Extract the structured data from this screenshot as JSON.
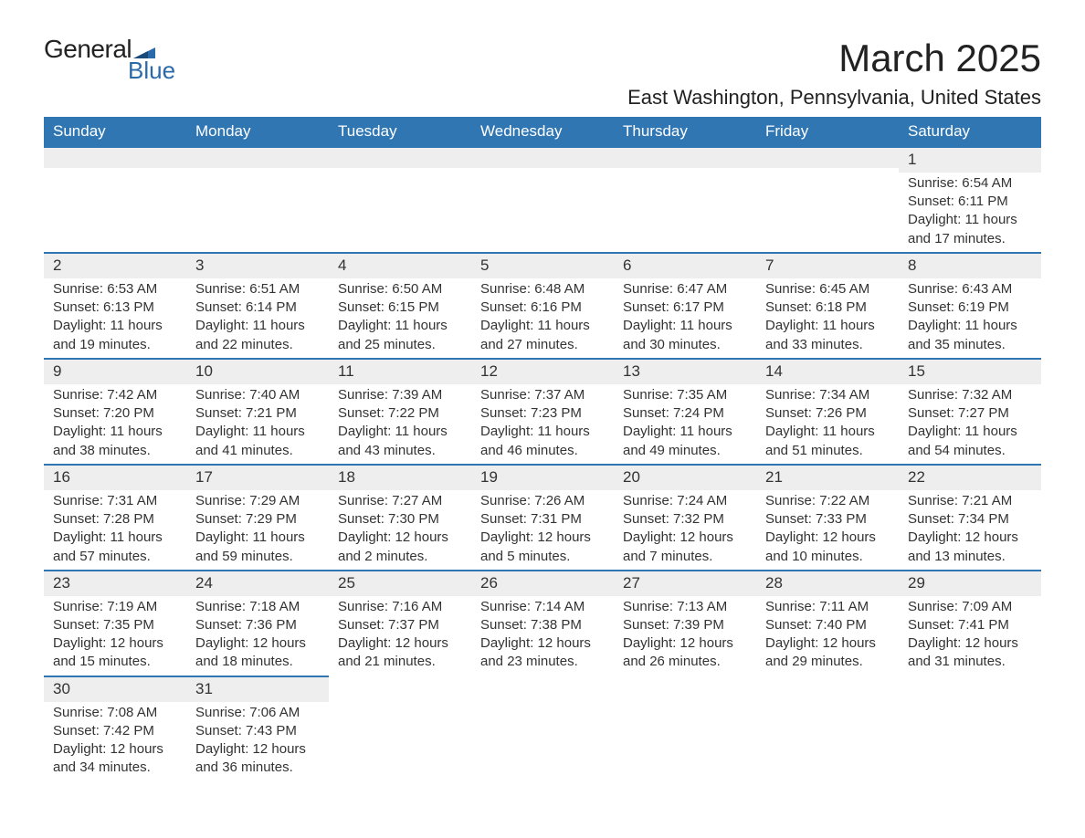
{
  "logo": {
    "general": "General",
    "blue": "Blue",
    "flag_color": "#2b6aa8"
  },
  "title": "March 2025",
  "location": "East Washington, Pennsylvania, United States",
  "colors": {
    "header_bg": "#3076b3",
    "header_text": "#ffffff",
    "daynum_bg": "#eeeeee",
    "border": "#3076b3",
    "text": "#333333"
  },
  "day_headers": [
    "Sunday",
    "Monday",
    "Tuesday",
    "Wednesday",
    "Thursday",
    "Friday",
    "Saturday"
  ],
  "weeks": [
    [
      null,
      null,
      null,
      null,
      null,
      null,
      {
        "n": "1",
        "sr": "6:54 AM",
        "ss": "6:11 PM",
        "dl": "11 hours and 17 minutes."
      }
    ],
    [
      {
        "n": "2",
        "sr": "6:53 AM",
        "ss": "6:13 PM",
        "dl": "11 hours and 19 minutes."
      },
      {
        "n": "3",
        "sr": "6:51 AM",
        "ss": "6:14 PM",
        "dl": "11 hours and 22 minutes."
      },
      {
        "n": "4",
        "sr": "6:50 AM",
        "ss": "6:15 PM",
        "dl": "11 hours and 25 minutes."
      },
      {
        "n": "5",
        "sr": "6:48 AM",
        "ss": "6:16 PM",
        "dl": "11 hours and 27 minutes."
      },
      {
        "n": "6",
        "sr": "6:47 AM",
        "ss": "6:17 PM",
        "dl": "11 hours and 30 minutes."
      },
      {
        "n": "7",
        "sr": "6:45 AM",
        "ss": "6:18 PM",
        "dl": "11 hours and 33 minutes."
      },
      {
        "n": "8",
        "sr": "6:43 AM",
        "ss": "6:19 PM",
        "dl": "11 hours and 35 minutes."
      }
    ],
    [
      {
        "n": "9",
        "sr": "7:42 AM",
        "ss": "7:20 PM",
        "dl": "11 hours and 38 minutes."
      },
      {
        "n": "10",
        "sr": "7:40 AM",
        "ss": "7:21 PM",
        "dl": "11 hours and 41 minutes."
      },
      {
        "n": "11",
        "sr": "7:39 AM",
        "ss": "7:22 PM",
        "dl": "11 hours and 43 minutes."
      },
      {
        "n": "12",
        "sr": "7:37 AM",
        "ss": "7:23 PM",
        "dl": "11 hours and 46 minutes."
      },
      {
        "n": "13",
        "sr": "7:35 AM",
        "ss": "7:24 PM",
        "dl": "11 hours and 49 minutes."
      },
      {
        "n": "14",
        "sr": "7:34 AM",
        "ss": "7:26 PM",
        "dl": "11 hours and 51 minutes."
      },
      {
        "n": "15",
        "sr": "7:32 AM",
        "ss": "7:27 PM",
        "dl": "11 hours and 54 minutes."
      }
    ],
    [
      {
        "n": "16",
        "sr": "7:31 AM",
        "ss": "7:28 PM",
        "dl": "11 hours and 57 minutes."
      },
      {
        "n": "17",
        "sr": "7:29 AM",
        "ss": "7:29 PM",
        "dl": "11 hours and 59 minutes."
      },
      {
        "n": "18",
        "sr": "7:27 AM",
        "ss": "7:30 PM",
        "dl": "12 hours and 2 minutes."
      },
      {
        "n": "19",
        "sr": "7:26 AM",
        "ss": "7:31 PM",
        "dl": "12 hours and 5 minutes."
      },
      {
        "n": "20",
        "sr": "7:24 AM",
        "ss": "7:32 PM",
        "dl": "12 hours and 7 minutes."
      },
      {
        "n": "21",
        "sr": "7:22 AM",
        "ss": "7:33 PM",
        "dl": "12 hours and 10 minutes."
      },
      {
        "n": "22",
        "sr": "7:21 AM",
        "ss": "7:34 PM",
        "dl": "12 hours and 13 minutes."
      }
    ],
    [
      {
        "n": "23",
        "sr": "7:19 AM",
        "ss": "7:35 PM",
        "dl": "12 hours and 15 minutes."
      },
      {
        "n": "24",
        "sr": "7:18 AM",
        "ss": "7:36 PM",
        "dl": "12 hours and 18 minutes."
      },
      {
        "n": "25",
        "sr": "7:16 AM",
        "ss": "7:37 PM",
        "dl": "12 hours and 21 minutes."
      },
      {
        "n": "26",
        "sr": "7:14 AM",
        "ss": "7:38 PM",
        "dl": "12 hours and 23 minutes."
      },
      {
        "n": "27",
        "sr": "7:13 AM",
        "ss": "7:39 PM",
        "dl": "12 hours and 26 minutes."
      },
      {
        "n": "28",
        "sr": "7:11 AM",
        "ss": "7:40 PM",
        "dl": "12 hours and 29 minutes."
      },
      {
        "n": "29",
        "sr": "7:09 AM",
        "ss": "7:41 PM",
        "dl": "12 hours and 31 minutes."
      }
    ],
    [
      {
        "n": "30",
        "sr": "7:08 AM",
        "ss": "7:42 PM",
        "dl": "12 hours and 34 minutes."
      },
      {
        "n": "31",
        "sr": "7:06 AM",
        "ss": "7:43 PM",
        "dl": "12 hours and 36 minutes."
      },
      null,
      null,
      null,
      null,
      null
    ]
  ],
  "labels": {
    "sunrise": "Sunrise: ",
    "sunset": "Sunset: ",
    "daylight": "Daylight: "
  }
}
